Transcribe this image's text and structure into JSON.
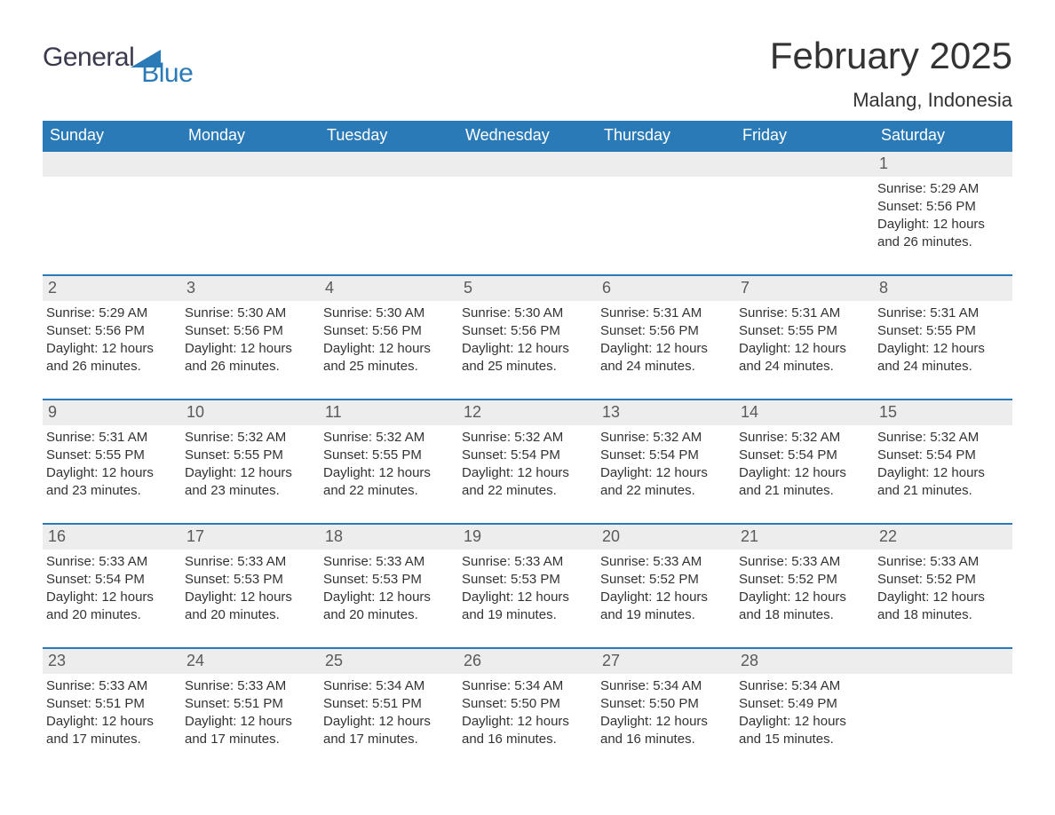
{
  "logo": {
    "part1": "General",
    "part2": "Blue",
    "accent_color": "#2a7ab8",
    "text_color": "#3a3a4d"
  },
  "title": "February 2025",
  "location": "Malang, Indonesia",
  "colors": {
    "header_bg": "#2a7ab8",
    "header_text": "#ffffff",
    "daynum_bg": "#ededed",
    "daynum_border": "#2a7ab8",
    "body_text": "#333333",
    "page_bg": "#ffffff"
  },
  "day_header_fontsize": 18,
  "title_fontsize": 42,
  "location_fontsize": 22,
  "body_fontsize": 15,
  "columns": [
    "Sunday",
    "Monday",
    "Tuesday",
    "Wednesday",
    "Thursday",
    "Friday",
    "Saturday"
  ],
  "weeks": [
    [
      null,
      null,
      null,
      null,
      null,
      null,
      {
        "n": "1",
        "sunrise": "Sunrise: 5:29 AM",
        "sunset": "Sunset: 5:56 PM",
        "daylight": "Daylight: 12 hours and 26 minutes."
      }
    ],
    [
      {
        "n": "2",
        "sunrise": "Sunrise: 5:29 AM",
        "sunset": "Sunset: 5:56 PM",
        "daylight": "Daylight: 12 hours and 26 minutes."
      },
      {
        "n": "3",
        "sunrise": "Sunrise: 5:30 AM",
        "sunset": "Sunset: 5:56 PM",
        "daylight": "Daylight: 12 hours and 26 minutes."
      },
      {
        "n": "4",
        "sunrise": "Sunrise: 5:30 AM",
        "sunset": "Sunset: 5:56 PM",
        "daylight": "Daylight: 12 hours and 25 minutes."
      },
      {
        "n": "5",
        "sunrise": "Sunrise: 5:30 AM",
        "sunset": "Sunset: 5:56 PM",
        "daylight": "Daylight: 12 hours and 25 minutes."
      },
      {
        "n": "6",
        "sunrise": "Sunrise: 5:31 AM",
        "sunset": "Sunset: 5:56 PM",
        "daylight": "Daylight: 12 hours and 24 minutes."
      },
      {
        "n": "7",
        "sunrise": "Sunrise: 5:31 AM",
        "sunset": "Sunset: 5:55 PM",
        "daylight": "Daylight: 12 hours and 24 minutes."
      },
      {
        "n": "8",
        "sunrise": "Sunrise: 5:31 AM",
        "sunset": "Sunset: 5:55 PM",
        "daylight": "Daylight: 12 hours and 24 minutes."
      }
    ],
    [
      {
        "n": "9",
        "sunrise": "Sunrise: 5:31 AM",
        "sunset": "Sunset: 5:55 PM",
        "daylight": "Daylight: 12 hours and 23 minutes."
      },
      {
        "n": "10",
        "sunrise": "Sunrise: 5:32 AM",
        "sunset": "Sunset: 5:55 PM",
        "daylight": "Daylight: 12 hours and 23 minutes."
      },
      {
        "n": "11",
        "sunrise": "Sunrise: 5:32 AM",
        "sunset": "Sunset: 5:55 PM",
        "daylight": "Daylight: 12 hours and 22 minutes."
      },
      {
        "n": "12",
        "sunrise": "Sunrise: 5:32 AM",
        "sunset": "Sunset: 5:54 PM",
        "daylight": "Daylight: 12 hours and 22 minutes."
      },
      {
        "n": "13",
        "sunrise": "Sunrise: 5:32 AM",
        "sunset": "Sunset: 5:54 PM",
        "daylight": "Daylight: 12 hours and 22 minutes."
      },
      {
        "n": "14",
        "sunrise": "Sunrise: 5:32 AM",
        "sunset": "Sunset: 5:54 PM",
        "daylight": "Daylight: 12 hours and 21 minutes."
      },
      {
        "n": "15",
        "sunrise": "Sunrise: 5:32 AM",
        "sunset": "Sunset: 5:54 PM",
        "daylight": "Daylight: 12 hours and 21 minutes."
      }
    ],
    [
      {
        "n": "16",
        "sunrise": "Sunrise: 5:33 AM",
        "sunset": "Sunset: 5:54 PM",
        "daylight": "Daylight: 12 hours and 20 minutes."
      },
      {
        "n": "17",
        "sunrise": "Sunrise: 5:33 AM",
        "sunset": "Sunset: 5:53 PM",
        "daylight": "Daylight: 12 hours and 20 minutes."
      },
      {
        "n": "18",
        "sunrise": "Sunrise: 5:33 AM",
        "sunset": "Sunset: 5:53 PM",
        "daylight": "Daylight: 12 hours and 20 minutes."
      },
      {
        "n": "19",
        "sunrise": "Sunrise: 5:33 AM",
        "sunset": "Sunset: 5:53 PM",
        "daylight": "Daylight: 12 hours and 19 minutes."
      },
      {
        "n": "20",
        "sunrise": "Sunrise: 5:33 AM",
        "sunset": "Sunset: 5:52 PM",
        "daylight": "Daylight: 12 hours and 19 minutes."
      },
      {
        "n": "21",
        "sunrise": "Sunrise: 5:33 AM",
        "sunset": "Sunset: 5:52 PM",
        "daylight": "Daylight: 12 hours and 18 minutes."
      },
      {
        "n": "22",
        "sunrise": "Sunrise: 5:33 AM",
        "sunset": "Sunset: 5:52 PM",
        "daylight": "Daylight: 12 hours and 18 minutes."
      }
    ],
    [
      {
        "n": "23",
        "sunrise": "Sunrise: 5:33 AM",
        "sunset": "Sunset: 5:51 PM",
        "daylight": "Daylight: 12 hours and 17 minutes."
      },
      {
        "n": "24",
        "sunrise": "Sunrise: 5:33 AM",
        "sunset": "Sunset: 5:51 PM",
        "daylight": "Daylight: 12 hours and 17 minutes."
      },
      {
        "n": "25",
        "sunrise": "Sunrise: 5:34 AM",
        "sunset": "Sunset: 5:51 PM",
        "daylight": "Daylight: 12 hours and 17 minutes."
      },
      {
        "n": "26",
        "sunrise": "Sunrise: 5:34 AM",
        "sunset": "Sunset: 5:50 PM",
        "daylight": "Daylight: 12 hours and 16 minutes."
      },
      {
        "n": "27",
        "sunrise": "Sunrise: 5:34 AM",
        "sunset": "Sunset: 5:50 PM",
        "daylight": "Daylight: 12 hours and 16 minutes."
      },
      {
        "n": "28",
        "sunrise": "Sunrise: 5:34 AM",
        "sunset": "Sunset: 5:49 PM",
        "daylight": "Daylight: 12 hours and 15 minutes."
      },
      null
    ]
  ]
}
